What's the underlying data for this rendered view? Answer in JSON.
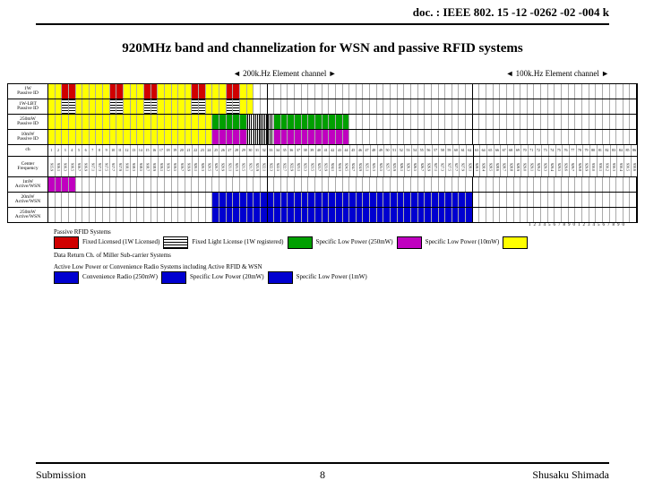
{
  "doc": {
    "id": "doc. : IEEE 802. 15 -12 -0262 -02 -004 k",
    "title": "920MHz band and channelization for WSN and passive RFID systems",
    "label200": "200k.Hz Element channel",
    "label100": "100k.Hz Element channel",
    "submission": "Submission",
    "page": "8",
    "author": "Shusaku Shimada"
  },
  "rows": {
    "r1": "1W\nPassive ID",
    "r2": "1W-LBT\nPassive ID",
    "r3": "250mW\nPassive ID",
    "r4": "10mW\nPassive ID",
    "r5": "ch",
    "r6": "Center\nFrequency",
    "r7": "1mW\nActive/WSN",
    "r8": "20mW\nActive/WSN",
    "r9": "250mW\nActive/WSN"
  },
  "grid": {
    "cols200": 62,
    "cols100": 24,
    "split_at": 62,
    "midline_at": 32,
    "r1": [
      {
        "from": 0,
        "to": 30,
        "cls": "y"
      },
      {
        "from": 2,
        "to": 4,
        "cls": "r"
      },
      {
        "from": 9,
        "to": 11,
        "cls": "r"
      },
      {
        "from": 14,
        "to": 16,
        "cls": "r"
      },
      {
        "from": 21,
        "to": 23,
        "cls": "r"
      },
      {
        "from": 26,
        "to": 28,
        "cls": "r"
      }
    ],
    "r2": [
      {
        "from": 0,
        "to": 30,
        "cls": "y"
      },
      {
        "from": 2,
        "to": 4,
        "cls": "hstripe"
      },
      {
        "from": 9,
        "to": 11,
        "cls": "hstripe"
      },
      {
        "from": 14,
        "to": 16,
        "cls": "hstripe"
      },
      {
        "from": 21,
        "to": 23,
        "cls": "hstripe"
      },
      {
        "from": 26,
        "to": 28,
        "cls": "hstripe"
      }
    ],
    "r3": [
      {
        "from": 0,
        "to": 30,
        "cls": "y"
      },
      {
        "from": 24,
        "to": 44,
        "cls": "g"
      },
      {
        "from": 29,
        "to": 33,
        "cls": "vstripe"
      }
    ],
    "r4": [
      {
        "from": 0,
        "to": 30,
        "cls": "y"
      },
      {
        "from": 24,
        "to": 44,
        "cls": "m"
      },
      {
        "from": 29,
        "to": 33,
        "cls": "vstripe"
      }
    ],
    "r7": [
      {
        "from": 0,
        "to": 4,
        "cls": "hstripe"
      },
      {
        "from": 0,
        "to": 4,
        "cls": "m"
      }
    ],
    "r8": [
      {
        "from": 24,
        "to": 62,
        "cls": "b"
      }
    ],
    "r9": [
      {
        "from": 24,
        "to": 62,
        "cls": "b"
      }
    ]
  },
  "legend": {
    "head1": "Passive RFID Systems",
    "i1": "Fixed Licensed\n(1W Licensed)",
    "i2": "Fixed Light License\n(1W registered)",
    "i3": "Specific Low Power\n(250mW)",
    "i4": "Specific Low Power\n(10mW)",
    "i5": "Data Return Ch. of\nMiller Sub-carrier Systems",
    "head2": "Active Low Power or Convenience Radio Systems including Active RFID & WSN",
    "i6": "Convenience Radio\n(250mW)",
    "i7": "Specific Low Power\n(20mW)",
    "i8": "Specific Low Power\n(1mW)",
    "colors": {
      "red": "#d00000",
      "hstripe": "",
      "green": "#00a000",
      "magenta": "#c000c0",
      "yellow": "#ffff00",
      "blue": "#0000d0"
    }
  }
}
